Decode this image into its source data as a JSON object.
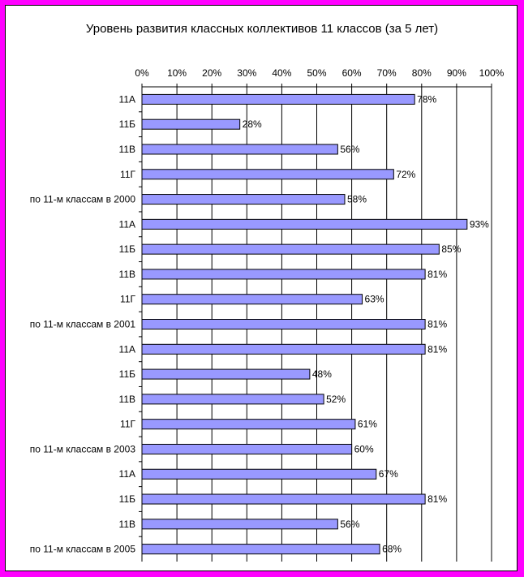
{
  "chart_data": {
    "type": "bar",
    "orientation": "horizontal",
    "title": "Уровень развития классных коллективов 11 классов (за 5 лет)",
    "xlabel": "",
    "ylabel": "",
    "xlim": [
      0,
      100
    ],
    "x_tick_labels": [
      "0%",
      "10%",
      "20%",
      "30%",
      "40%",
      "50%",
      "60%",
      "70%",
      "80%",
      "90%",
      "100%"
    ],
    "x_axis_position": "top",
    "grid": true,
    "legend": "none",
    "categories": [
      "11А",
      "11Б",
      "11В",
      "11Г",
      "по 11-м классам в 2000",
      "11А",
      "11Б",
      "11В",
      "11Г",
      "по 11-м классам в 2001",
      "11А",
      "11Б",
      "11В",
      "11Г",
      "по 11-м классам в 2003",
      "11А",
      "11Б",
      "11В",
      "по 11-м классам в 2005"
    ],
    "values": [
      78,
      28,
      56,
      72,
      58,
      93,
      85,
      81,
      63,
      81,
      81,
      48,
      52,
      61,
      60,
      67,
      81,
      56,
      68
    ],
    "value_labels": [
      "78%",
      "28%",
      "56%",
      "72%",
      "58%",
      "93%",
      "85%",
      "81%",
      "63%",
      "81%",
      "81%",
      "48%",
      "52%",
      "61%",
      "60%",
      "67%",
      "81%",
      "56%",
      "68%"
    ],
    "bar_color": "#9999ff",
    "bar_edge_color": "#000000",
    "background_color": "#ffffff",
    "border_color": "#ff00ff"
  }
}
